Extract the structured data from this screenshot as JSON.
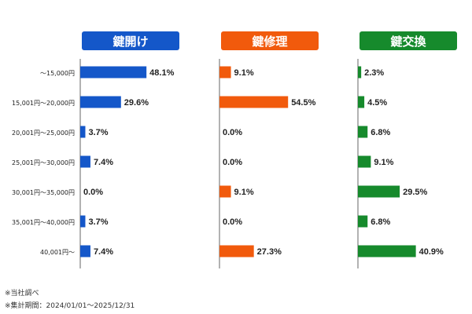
{
  "chart_data": {
    "type": "bar",
    "orientation": "horizontal",
    "categories": [
      "～15,000円",
      "15,001円～20,000円",
      "20,001円～25,000円",
      "25,001円～30,000円",
      "30,001円～35,000円",
      "35,001円～40,000円",
      "40,001円～"
    ],
    "series": [
      {
        "name": "鍵開け",
        "color": "#1457c9",
        "values": [
          48.1,
          29.6,
          3.7,
          7.4,
          0.0,
          3.7,
          7.4
        ]
      },
      {
        "name": "鍵修理",
        "color": "#f15a0c",
        "values": [
          9.1,
          54.5,
          0.0,
          0.0,
          9.1,
          0.0,
          27.3
        ]
      },
      {
        "name": "鍵交換",
        "color": "#168a2c",
        "values": [
          2.3,
          4.5,
          6.8,
          9.1,
          29.5,
          6.8,
          40.9
        ]
      }
    ],
    "value_format": "0.0%",
    "legend": "none",
    "grid": false
  },
  "notes": [
    "※当社調べ",
    "※集計期間：2024/01/01～2025/12/31"
  ]
}
